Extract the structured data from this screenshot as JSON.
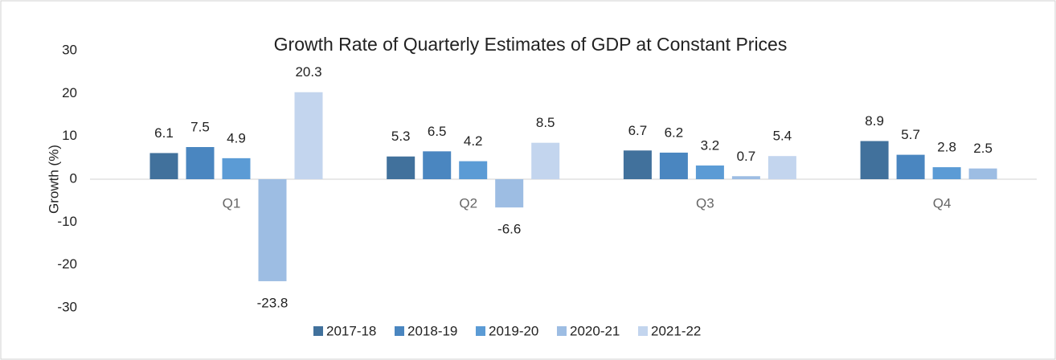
{
  "chart_data": {
    "type": "bar",
    "title": "Growth Rate of Quarterly Estimates of GDP at Constant Prices",
    "y_label": "Growth (%)",
    "categories": [
      "Q1",
      "Q2",
      "Q3",
      "Q4"
    ],
    "series": [
      {
        "name": "2017-18",
        "color": "#41719c",
        "values": [
          6.1,
          5.3,
          6.7,
          8.9
        ]
      },
      {
        "name": "2018-19",
        "color": "#4a86c0",
        "values": [
          7.5,
          6.5,
          6.2,
          5.7
        ]
      },
      {
        "name": "2019-20",
        "color": "#5b9bd5",
        "values": [
          4.9,
          4.2,
          3.2,
          2.8
        ]
      },
      {
        "name": "2020-21",
        "color": "#9dbde3",
        "values": [
          -23.8,
          -6.6,
          0.7,
          2.5
        ]
      },
      {
        "name": "2021-22",
        "color": "#c3d5ee",
        "values": [
          20.3,
          8.5,
          5.4,
          null
        ]
      }
    ],
    "ylim": [
      -30,
      30
    ],
    "yticks": [
      -30,
      -20,
      -10,
      0,
      10,
      20,
      30
    ],
    "grid": false,
    "legend": "bottom"
  }
}
